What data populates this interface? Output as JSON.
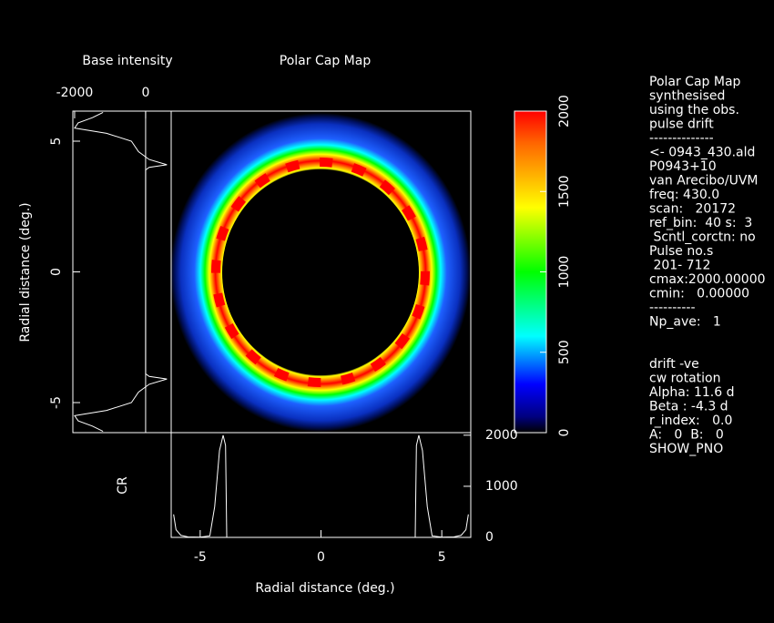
{
  "chart_data": [
    {
      "type": "heatmap",
      "title": "Polar Cap Map",
      "xlim": [
        -6.2,
        6.2
      ],
      "ylim": [
        -6.15,
        6.15
      ],
      "clim": [
        0,
        2000
      ],
      "cticks": [
        0,
        500,
        1000,
        1500,
        2000
      ]
    },
    {
      "type": "line",
      "title": "Base intensity",
      "ylabel": "Radial distance (deg.)",
      "x": [
        6.1,
        5.9,
        5.7,
        5.5,
        5.3,
        5.0,
        4.6,
        4.3,
        4.1,
        4.0,
        3.9,
        3.8,
        0,
        -3.8,
        -3.9,
        -4.0,
        -4.1,
        -4.3,
        -4.6,
        -5.0,
        -5.3,
        -5.5,
        -5.7,
        -5.9,
        -6.1
      ],
      "values": [
        -1200,
        -1500,
        -1900,
        -2000,
        -1100,
        -400,
        -200,
        100,
        600,
        100,
        0,
        0,
        0,
        0,
        0,
        100,
        600,
        100,
        -200,
        -400,
        -1100,
        -2000,
        -1900,
        -1500,
        -1200
      ],
      "xlim": [
        -6.15,
        6.15
      ],
      "ylim": [
        -2050,
        720
      ],
      "xticks": [
        -5,
        0,
        5
      ],
      "yticks": [
        -2000,
        0
      ]
    },
    {
      "type": "line",
      "xlabel": "Radial distance (deg.)",
      "ylabel": "CR",
      "x": [
        -6.1,
        -6,
        -5.8,
        -5.5,
        -5,
        -4.6,
        -4.4,
        -4.2,
        -4.05,
        -3.95,
        -3.9,
        -3.5,
        -2,
        0,
        2,
        3.5,
        3.9,
        3.95,
        4.05,
        4.2,
        4.4,
        4.6,
        5,
        5.5,
        5.8,
        6,
        6.1
      ],
      "values": [
        450,
        150,
        40,
        10,
        5,
        30,
        600,
        1700,
        2000,
        1800,
        0,
        0,
        0,
        0,
        0,
        0,
        0,
        1800,
        2000,
        1700,
        600,
        30,
        5,
        10,
        40,
        150,
        450
      ],
      "xlim": [
        -6.2,
        6.2
      ],
      "ylim": [
        0,
        2050
      ],
      "xticks": [
        -5,
        0,
        5
      ],
      "yticks": [
        0,
        1000,
        2000
      ]
    }
  ],
  "side_panel": {
    "lines": [
      "Polar Cap Map",
      "synthesised",
      "using the obs.",
      "pulse drift",
      "--------------",
      "<- 0943_430.ald",
      "P0943+10",
      "van Arecibo/UVM",
      "freq: 430.0",
      "scan:   20172",
      "ref_bin:  40 s:  3",
      " Scntl_corctn: no",
      "Pulse no.s",
      " 201- 712",
      "cmax:2000.00000",
      "cmin:   0.00000",
      "----------",
      "Np_ave:   1"
    ],
    "lines2": [
      "drift -ve",
      "cw rotation",
      "Alpha: 11.6 d",
      "Beta : -4.3 d",
      "r_index:   0.0",
      "A:   0  B:   0",
      "SHOW_PNO"
    ]
  }
}
